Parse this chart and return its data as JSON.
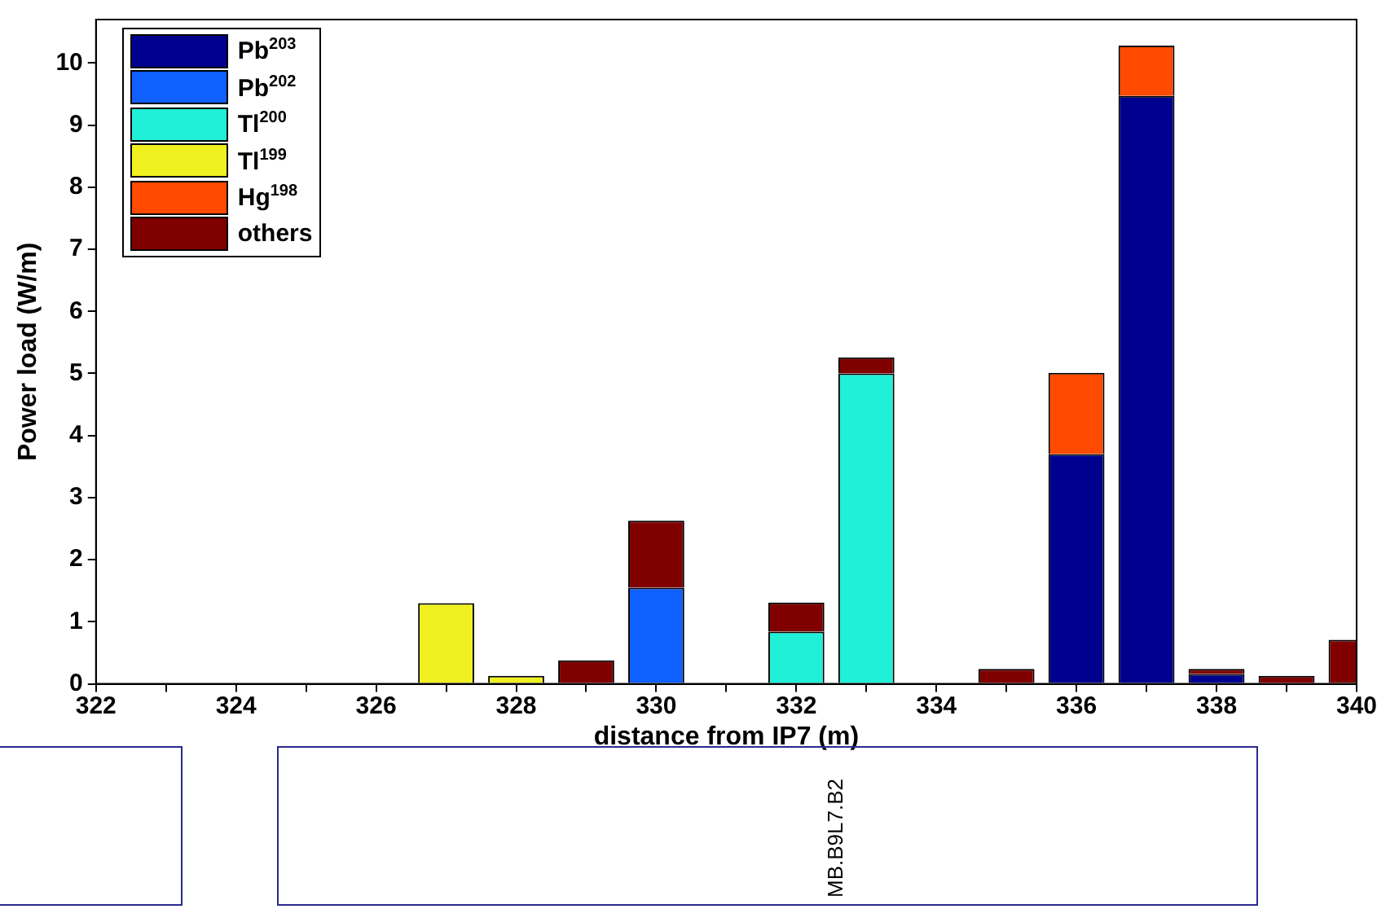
{
  "chart_data": {
    "type": "bar",
    "stacked": true,
    "xlabel": "distance from IP7 (m)",
    "ylabel": "Power load (W/m)",
    "x": [
      327,
      328,
      329,
      330,
      332,
      333,
      335,
      336,
      337,
      338,
      339,
      340
    ],
    "series": [
      {
        "name": "Pb$^{203}$",
        "color": "#00008f",
        "values": [
          null,
          null,
          null,
          null,
          null,
          null,
          null,
          3.7,
          9.47,
          0.16,
          null,
          null
        ]
      },
      {
        "name": "Pb$^{202}$",
        "color": "#0f60ff",
        "values": [
          null,
          null,
          null,
          1.55,
          null,
          null,
          null,
          null,
          null,
          null,
          null,
          null
        ]
      },
      {
        "name": "Tl$^{200}$",
        "color": "#20f0d8",
        "values": [
          null,
          null,
          null,
          null,
          0.84,
          5.0,
          null,
          null,
          null,
          null,
          null,
          null
        ]
      },
      {
        "name": "Tl$^{199}$",
        "color": "#f0f020",
        "values": [
          1.3,
          0.13,
          null,
          null,
          null,
          null,
          null,
          null,
          null,
          null,
          null,
          null
        ]
      },
      {
        "name": "Hg$^{198}$",
        "color": "#ff4a00",
        "values": [
          null,
          null,
          null,
          null,
          null,
          null,
          null,
          1.31,
          0.81,
          null,
          null,
          null
        ]
      },
      {
        "name": "others",
        "color": "#800000",
        "values": [
          null,
          null,
          0.38,
          1.08,
          0.47,
          0.26,
          0.24,
          null,
          null,
          0.08,
          0.13,
          0.71
        ]
      }
    ],
    "xlim": [
      322,
      340
    ],
    "xticks": [
      322,
      {
        "value": 323,
        "label": null
      },
      324,
      {
        "value": 325,
        "label": null
      },
      326,
      {
        "value": 327,
        "label": null
      },
      328,
      {
        "value": 329,
        "label": null
      },
      330,
      {
        "value": 331,
        "label": null
      },
      332,
      {
        "value": 333,
        "label": null
      },
      334,
      {
        "value": 335,
        "label": null
      },
      336,
      {
        "value": 337,
        "label": null
      },
      338,
      {
        "value": 339,
        "label": null
      },
      340
    ],
    "ylim": [
      0,
      10.7
    ],
    "yticks": [
      0,
      1,
      2,
      3,
      4,
      5,
      6,
      7,
      8,
      9,
      10
    ],
    "grid": false,
    "legend": "top left",
    "annotations": [
      "MB.B9L7.B2"
    ]
  }
}
